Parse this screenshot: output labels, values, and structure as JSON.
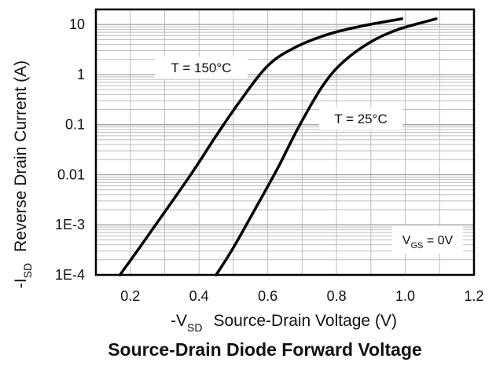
{
  "chart_data": {
    "type": "line",
    "title": "Source-Drain Diode Forward Voltage",
    "xlabel": {
      "prefix": "-V",
      "sub": "SD",
      "rest": "Source-Drain Voltage (V)"
    },
    "ylabel": {
      "prefix": "-I",
      "sub": "SD",
      "rest": "Reverse Drain Current (A)"
    },
    "xlim": [
      0.1,
      1.2
    ],
    "ylim": [
      0.0001,
      20
    ],
    "yscale": "log",
    "grid": true,
    "xticks": [
      0.2,
      0.4,
      0.6,
      0.8,
      1.0,
      1.2
    ],
    "xtick_labels": [
      "0.2",
      "0.4",
      "0.6",
      "0.8",
      "1.0",
      "1.2"
    ],
    "yticks": [
      10,
      1,
      0.1,
      0.01,
      0.001,
      0.0001
    ],
    "ytick_labels": [
      "10",
      "1",
      "0.1",
      "0.01",
      "1E-3",
      "1E-4"
    ],
    "series": [
      {
        "name": "T = 150°C",
        "x": [
          0.17,
          0.22,
          0.3,
          0.38,
          0.45,
          0.52,
          0.6,
          0.68,
          0.78,
          0.88,
          0.99
        ],
        "y": [
          0.0001,
          0.0003,
          0.0018,
          0.011,
          0.06,
          0.3,
          1.5,
          3.5,
          6.5,
          9.5,
          13
        ]
      },
      {
        "name": "T = 25°C",
        "x": [
          0.45,
          0.5,
          0.57,
          0.63,
          0.69,
          0.76,
          0.82,
          0.9,
          0.98,
          1.09
        ],
        "y": [
          0.0001,
          0.00035,
          0.0025,
          0.014,
          0.09,
          0.6,
          1.8,
          4.5,
          8.0,
          13
        ]
      }
    ],
    "annotation": {
      "prefix": "V",
      "sub": "GS",
      "rest": " = 0V"
    },
    "colors": {
      "line": "#000000",
      "grid": "#bdbdbd",
      "frame": "#000000"
    }
  }
}
